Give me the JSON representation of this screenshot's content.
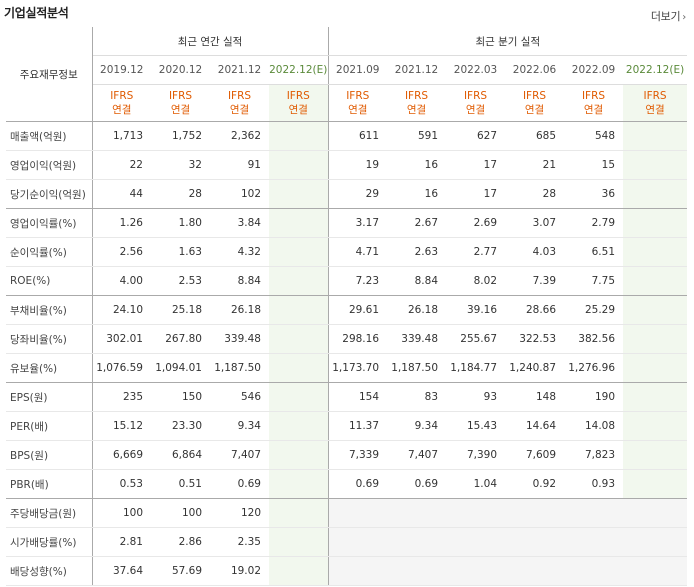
{
  "header": {
    "title": "기업실적분석",
    "more_label": "더보기"
  },
  "table": {
    "row_header": "주요재무정보",
    "group_annual": "최근 연간 실적",
    "group_quarter": "최근 분기 실적",
    "periods": [
      "2019.12",
      "2020.12",
      "2021.12",
      "2022.12(E)",
      "2021.09",
      "2021.12",
      "2022.03",
      "2022.06",
      "2022.09",
      "2022.12(E)"
    ],
    "standard_line1": "IFRS",
    "standard_line2": "연결",
    "rows": [
      {
        "label": "매출액(억원)",
        "values": [
          "1,713",
          "1,752",
          "2,362",
          "",
          "611",
          "591",
          "627",
          "685",
          "548",
          ""
        ]
      },
      {
        "label": "영업이익(억원)",
        "values": [
          "22",
          "32",
          "91",
          "",
          "19",
          "16",
          "17",
          "21",
          "15",
          ""
        ]
      },
      {
        "label": "당기순이익(억원)",
        "values": [
          "44",
          "28",
          "102",
          "",
          "29",
          "16",
          "17",
          "28",
          "36",
          ""
        ]
      },
      {
        "label": "영업이익률(%)",
        "values": [
          "1.26",
          "1.80",
          "3.84",
          "",
          "3.17",
          "2.67",
          "2.69",
          "3.07",
          "2.79",
          ""
        ]
      },
      {
        "label": "순이익률(%)",
        "values": [
          "2.56",
          "1.63",
          "4.32",
          "",
          "4.71",
          "2.63",
          "2.77",
          "4.03",
          "6.51",
          ""
        ]
      },
      {
        "label": "ROE(%)",
        "values": [
          "4.00",
          "2.53",
          "8.84",
          "",
          "7.23",
          "8.84",
          "8.02",
          "7.39",
          "7.75",
          ""
        ]
      },
      {
        "label": "부채비율(%)",
        "values": [
          "24.10",
          "25.18",
          "26.18",
          "",
          "29.61",
          "26.18",
          "39.16",
          "28.66",
          "25.29",
          ""
        ]
      },
      {
        "label": "당좌비율(%)",
        "values": [
          "302.01",
          "267.80",
          "339.48",
          "",
          "298.16",
          "339.48",
          "255.67",
          "322.53",
          "382.56",
          ""
        ]
      },
      {
        "label": "유보율(%)",
        "values": [
          "1,076.59",
          "1,094.01",
          "1,187.50",
          "",
          "1,173.70",
          "1,187.50",
          "1,184.77",
          "1,240.87",
          "1,276.96",
          ""
        ]
      },
      {
        "label": "EPS(원)",
        "values": [
          "235",
          "150",
          "546",
          "",
          "154",
          "83",
          "93",
          "148",
          "190",
          ""
        ]
      },
      {
        "label": "PER(배)",
        "values": [
          "15.12",
          "23.30",
          "9.34",
          "",
          "11.37",
          "9.34",
          "15.43",
          "14.64",
          "14.08",
          ""
        ]
      },
      {
        "label": "BPS(원)",
        "values": [
          "6,669",
          "6,864",
          "7,407",
          "",
          "7,339",
          "7,407",
          "7,390",
          "7,609",
          "7,823",
          ""
        ]
      },
      {
        "label": "PBR(배)",
        "values": [
          "0.53",
          "0.51",
          "0.69",
          "",
          "0.69",
          "0.69",
          "1.04",
          "0.92",
          "0.93",
          ""
        ]
      },
      {
        "label": "주당배당금(원)",
        "values": [
          "100",
          "100",
          "120",
          "",
          "",
          "",
          "",
          "",
          "",
          ""
        ]
      },
      {
        "label": "시가배당률(%)",
        "values": [
          "2.81",
          "2.86",
          "2.35",
          "",
          "",
          "",
          "",
          "",
          "",
          ""
        ]
      },
      {
        "label": "배당성향(%)",
        "values": [
          "37.64",
          "57.69",
          "19.02",
          "",
          "",
          "",
          "",
          "",
          "",
          ""
        ]
      }
    ]
  }
}
